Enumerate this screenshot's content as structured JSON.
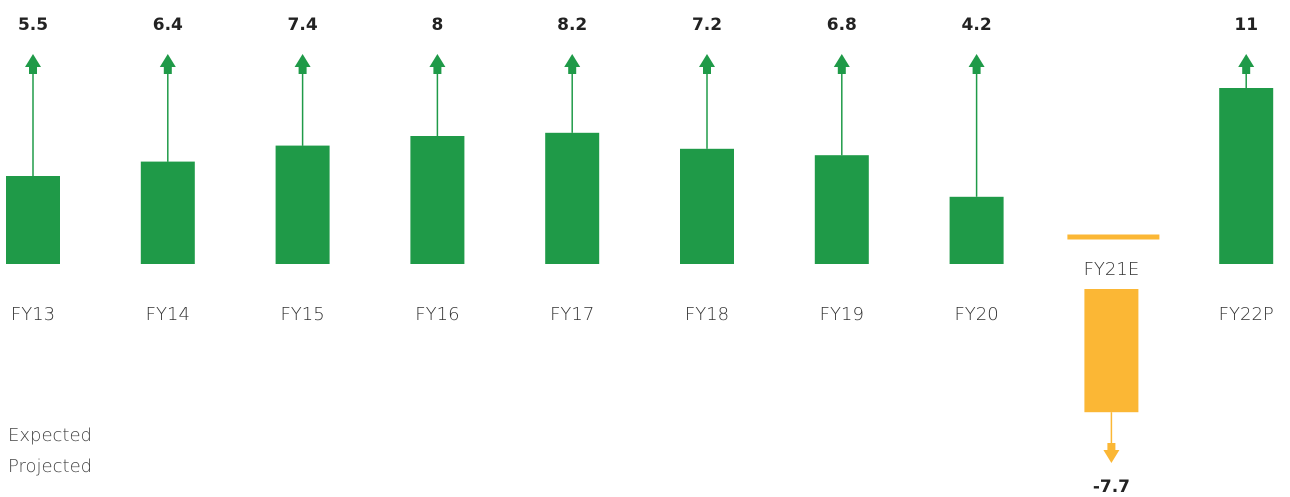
{
  "chart_data": {
    "type": "bar",
    "categories": [
      "FY13",
      "FY14",
      "FY15",
      "FY16",
      "FY17",
      "FY18",
      "FY19",
      "FY20",
      "FY21E",
      "FY22P"
    ],
    "values": [
      5.5,
      6.4,
      7.4,
      8,
      8.2,
      7.2,
      6.8,
      4.2,
      -7.7,
      11
    ],
    "color": "#1f9a48",
    "negative_color": "#fbb735",
    "legend": [
      "Expected",
      "Projected"
    ]
  }
}
